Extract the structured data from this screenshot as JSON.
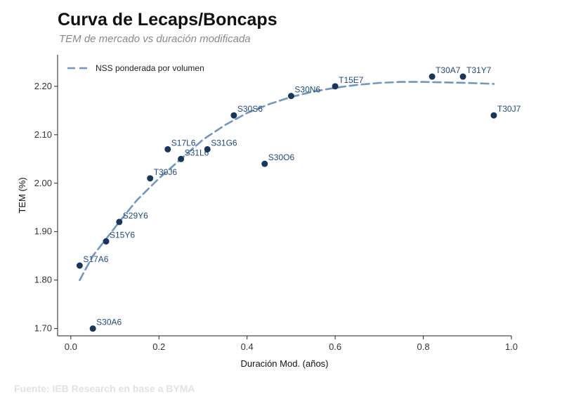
{
  "chart_data": {
    "type": "scatter",
    "title": "Curva de Lecaps/Boncaps",
    "subtitle": "TEM de mercado vs duración modificada",
    "xlabel": "Duración Mod. (años)",
    "ylabel": "TEM (%)",
    "xlim": [
      -0.03,
      1.0
    ],
    "ylim": [
      1.685,
      2.265
    ],
    "xticks": [
      "0.0",
      "0.2",
      "0.4",
      "0.6",
      "0.8",
      "1.0"
    ],
    "yticks": [
      "1.70",
      "1.80",
      "1.90",
      "2.00",
      "2.10",
      "2.20"
    ],
    "grid": false,
    "legend_position": "top-left",
    "point_color": "#17365d",
    "curve_color": "#6f97c2",
    "points": [
      {
        "label": "S17A6",
        "x": 0.02,
        "y": 1.83
      },
      {
        "label": "S30A6",
        "x": 0.05,
        "y": 1.7
      },
      {
        "label": "S15Y6",
        "x": 0.08,
        "y": 1.88
      },
      {
        "label": "S29Y6",
        "x": 0.11,
        "y": 1.92
      },
      {
        "label": "T30J6",
        "x": 0.18,
        "y": 2.01
      },
      {
        "label": "S17L6",
        "x": 0.22,
        "y": 2.07
      },
      {
        "label": "S31L6",
        "x": 0.25,
        "y": 2.05
      },
      {
        "label": "S31G6",
        "x": 0.31,
        "y": 2.07
      },
      {
        "label": "S30S6",
        "x": 0.37,
        "y": 2.14
      },
      {
        "label": "S30O6",
        "x": 0.44,
        "y": 2.04
      },
      {
        "label": "S30N6",
        "x": 0.5,
        "y": 2.18
      },
      {
        "label": "T15E7",
        "x": 0.6,
        "y": 2.2
      },
      {
        "label": "T30A7",
        "x": 0.82,
        "y": 2.22
      },
      {
        "label": "T31Y7",
        "x": 0.89,
        "y": 2.22
      },
      {
        "label": "T30J7",
        "x": 0.96,
        "y": 2.14
      }
    ],
    "series": [
      {
        "name": "NSS ponderada por volumen",
        "style": "dashed",
        "x": [
          0.02,
          0.05,
          0.08,
          0.11,
          0.15,
          0.2,
          0.25,
          0.3,
          0.35,
          0.4,
          0.45,
          0.5,
          0.55,
          0.6,
          0.65,
          0.7,
          0.75,
          0.8,
          0.85,
          0.9,
          0.96
        ],
        "y": [
          1.8,
          1.85,
          1.885,
          1.92,
          1.965,
          2.01,
          2.05,
          2.09,
          2.12,
          2.145,
          2.163,
          2.178,
          2.189,
          2.197,
          2.203,
          2.207,
          2.209,
          2.209,
          2.208,
          2.207,
          2.205
        ]
      }
    ]
  },
  "source": "Fuente: IEB Research en base a BYMA"
}
